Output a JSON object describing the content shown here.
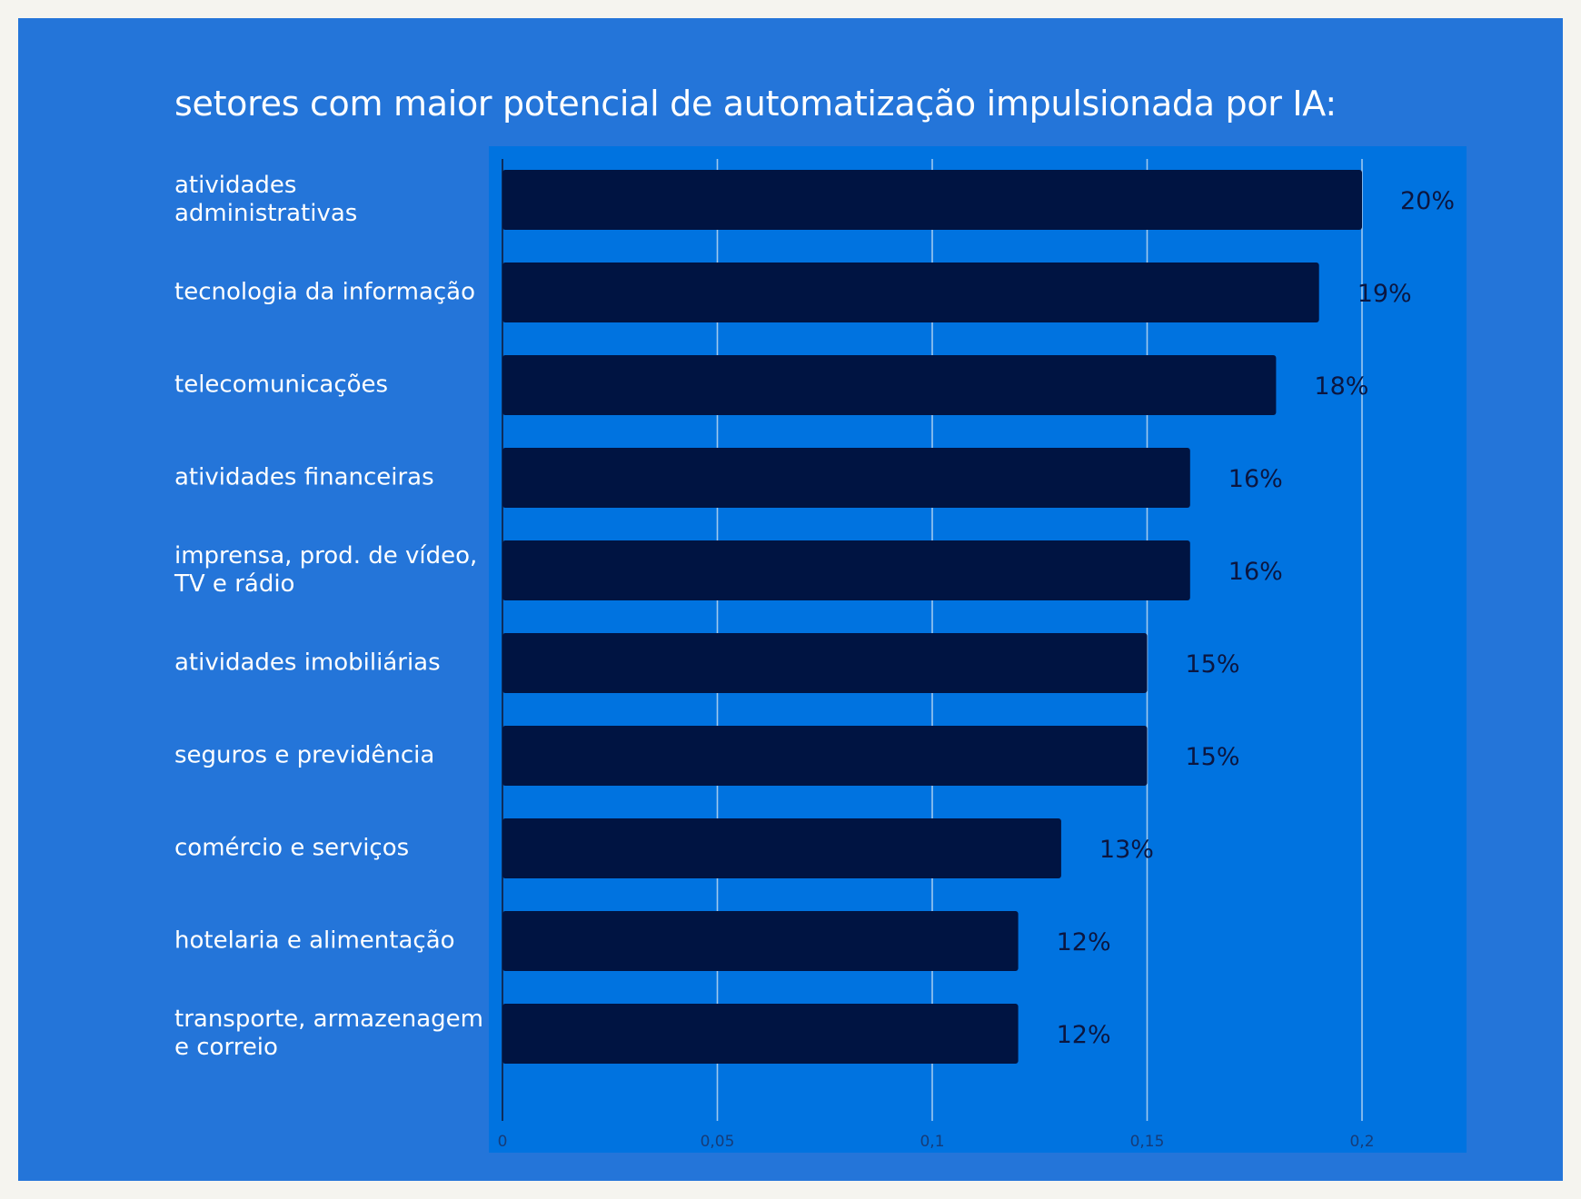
{
  "chart_data": {
    "type": "bar",
    "orientation": "horizontal",
    "title": "setores com maior potencial de automatização impulsionada por IA:",
    "categories": [
      "atividades administrativas",
      "tecnologia da informação",
      "telecomunicações",
      "atividades financeiras",
      "imprensa, prod. de vídeo,\nTV e rádio",
      "atividades imobiliárias",
      "seguros e previdência",
      "comércio e serviços",
      "hotelaria e alimentação",
      "transporte, armazenagem\ne correio"
    ],
    "values": [
      0.2,
      0.19,
      0.18,
      0.16,
      0.16,
      0.15,
      0.15,
      0.13,
      0.12,
      0.12
    ],
    "value_labels": [
      "20%",
      "19%",
      "18%",
      "16%",
      "16%",
      "15%",
      "15%",
      "13%",
      "12%",
      "12%"
    ],
    "x_ticks": [
      "0",
      "0,05",
      "0,1",
      "0,15",
      "0,2"
    ],
    "x_tick_values": [
      0,
      0.05,
      0.1,
      0.15,
      0.2
    ],
    "xlim": [
      0,
      0.2245
    ],
    "grid": true,
    "legend": "none",
    "colors": {
      "bar": "#001442",
      "plot_background": "#0073e0",
      "card_background": "#2475d9",
      "gridline": "#9fc8ee",
      "axis": "#0d2d5c"
    }
  }
}
